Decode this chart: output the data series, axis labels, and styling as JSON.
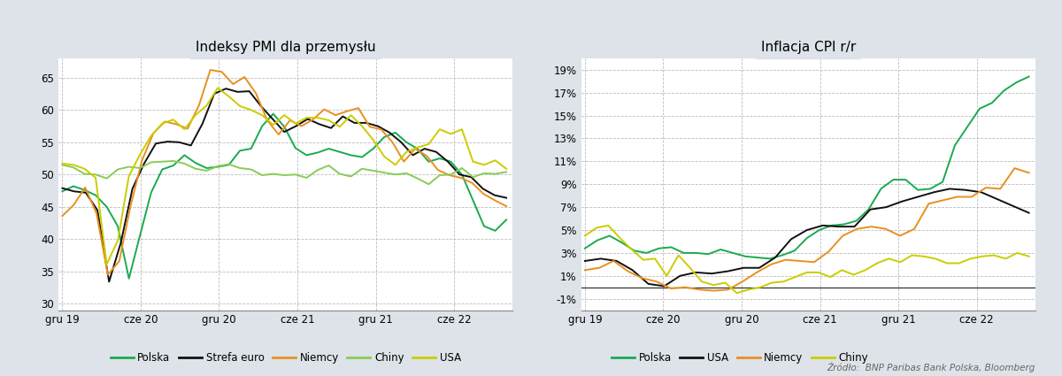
{
  "chart1_title": "Indeksy PMI dla przemysłu",
  "chart2_title": "Inflacja CPI r/r",
  "source_text": "Źródło:  BNP Paribas Bank Polska, Bloomberg",
  "background_color": "#dde3e8",
  "plot_bg_color": "#ffffff",
  "grid_color": "#bbbbbb",
  "pmi_x_ticks": [
    "gru 19",
    "cze 20",
    "gru 20",
    "cze 21",
    "gru 21",
    "cze 22"
  ],
  "pmi_ylim": [
    29,
    68
  ],
  "pmi_yticks": [
    30,
    35,
    40,
    45,
    50,
    55,
    60,
    65
  ],
  "cpi_x_ticks": [
    "gru 19",
    "cze 20",
    "gru 20",
    "cze 21",
    "gru 21",
    "cze 22"
  ],
  "cpi_ylim": [
    -2,
    20
  ],
  "cpi_yticks": [
    -1,
    1,
    3,
    5,
    7,
    9,
    11,
    13,
    15,
    17,
    19
  ],
  "pmi_polska_color": "#1aaa50",
  "pmi_strefa_color": "#111111",
  "pmi_niemcy_color": "#e89020",
  "pmi_chiny_color": "#88cc55",
  "pmi_usa_color": "#cccc00",
  "cpi_polska_color": "#1aaa50",
  "cpi_usa_color": "#111111",
  "cpi_niemcy_color": "#e89020",
  "cpi_chiny_color": "#cccc00",
  "pmi_polska": [
    47.4,
    48.2,
    47.6,
    46.8,
    45.0,
    42.0,
    33.9,
    40.6,
    47.2,
    50.8,
    51.4,
    53.0,
    51.8,
    51.0,
    51.2,
    51.5,
    53.7,
    54.0,
    57.5,
    59.4,
    57.4,
    54.1,
    53.0,
    53.4,
    54.0,
    53.5,
    53.0,
    52.7,
    54.0,
    55.8,
    56.5,
    55.0,
    54.0,
    52.0,
    52.5,
    52.0,
    50.0,
    46.0,
    42.0,
    41.3,
    43.0
  ],
  "pmi_strefa": [
    47.9,
    47.4,
    47.2,
    44.5,
    33.4,
    39.4,
    47.8,
    51.7,
    54.8,
    55.1,
    55.0,
    54.5,
    57.9,
    62.5,
    63.3,
    62.8,
    62.9,
    60.6,
    58.6,
    56.6,
    57.5,
    58.6,
    57.8,
    57.2,
    59.0,
    58.0,
    58.0,
    57.5,
    56.5,
    55.0,
    53.0,
    54.0,
    53.5,
    52.0,
    50.0,
    49.6,
    47.8,
    46.8,
    46.4
  ],
  "pmi_niemcy": [
    43.6,
    45.3,
    48.0,
    44.0,
    34.5,
    36.6,
    45.2,
    52.2,
    56.4,
    58.2,
    57.8,
    57.1,
    60.7,
    66.2,
    65.9,
    64.0,
    65.1,
    62.6,
    58.4,
    56.2,
    58.4,
    57.5,
    58.5,
    60.1,
    59.2,
    59.8,
    60.3,
    57.4,
    57.0,
    55.0,
    52.0,
    54.0,
    52.9,
    50.7,
    49.9,
    49.5,
    48.7,
    47.0,
    46.0,
    45.1
  ],
  "pmi_chiny": [
    51.5,
    51.1,
    50.1,
    50.0,
    49.4,
    50.8,
    51.2,
    51.0,
    51.9,
    52.0,
    52.1,
    51.7,
    50.9,
    50.6,
    51.3,
    51.6,
    51.0,
    50.8,
    49.9,
    50.1,
    49.9,
    50.0,
    49.5,
    50.7,
    51.4,
    50.1,
    49.7,
    50.9,
    50.6,
    50.3,
    50.0,
    50.2,
    49.4,
    48.5,
    49.9,
    50.0,
    51.0,
    49.6,
    50.2,
    50.1,
    50.4
  ],
  "pmi_usa": [
    51.7,
    51.5,
    50.9,
    49.5,
    36.1,
    39.8,
    49.8,
    53.1,
    56.0,
    57.9,
    58.5,
    57.0,
    59.2,
    60.7,
    63.4,
    62.1,
    60.6,
    60.0,
    59.2,
    57.7,
    59.2,
    57.9,
    58.8,
    58.8,
    58.4,
    57.4,
    59.2,
    57.5,
    55.4,
    52.8,
    51.5,
    53.5,
    54.2,
    54.7,
    57.0,
    56.3,
    57.0,
    52.0,
    51.5,
    52.2,
    50.9
  ],
  "cpi_polska": [
    3.4,
    4.1,
    4.5,
    3.9,
    3.2,
    3.0,
    3.4,
    3.5,
    3.0,
    3.0,
    2.9,
    3.3,
    3.0,
    2.7,
    2.6,
    2.5,
    2.8,
    3.2,
    4.3,
    5.0,
    5.4,
    5.5,
    5.8,
    6.8,
    8.6,
    9.4,
    9.4,
    8.5,
    8.6,
    9.2,
    12.4,
    14.0,
    15.6,
    16.1,
    17.2,
    17.9,
    18.4
  ],
  "cpi_usa": [
    2.3,
    2.5,
    2.3,
    1.5,
    0.3,
    0.1,
    1.0,
    1.3,
    1.2,
    1.4,
    1.7,
    1.7,
    2.6,
    4.2,
    5.0,
    5.4,
    5.3,
    5.3,
    6.8,
    7.0,
    7.5,
    7.9,
    8.3,
    8.6,
    8.5,
    8.3,
    7.7,
    7.1,
    6.5
  ],
  "cpi_niemcy": [
    1.5,
    1.7,
    2.3,
    1.4,
    0.8,
    0.5,
    -0.1,
    0.0,
    -0.2,
    -0.3,
    -0.2,
    0.5,
    1.3,
    2.0,
    2.4,
    2.3,
    2.2,
    3.1,
    4.5,
    5.1,
    5.3,
    5.1,
    4.5,
    5.1,
    7.3,
    7.6,
    7.9,
    7.9,
    8.7,
    8.6,
    10.4,
    10.0
  ],
  "cpi_chiny": [
    4.5,
    5.2,
    5.4,
    4.3,
    3.3,
    2.4,
    2.5,
    1.0,
    2.8,
    1.7,
    0.5,
    0.2,
    0.4,
    -0.5,
    -0.2,
    0.0,
    0.4,
    0.5,
    0.9,
    1.3,
    1.3,
    0.9,
    1.5,
    1.1,
    1.5,
    2.1,
    2.5,
    2.2,
    2.8,
    2.7,
    2.5,
    2.1,
    2.1,
    2.5,
    2.7,
    2.8,
    2.5,
    3.0,
    2.7
  ]
}
